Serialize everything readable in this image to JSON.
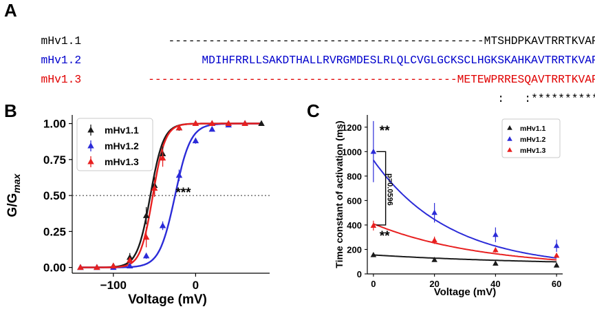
{
  "panel_labels": {
    "a": "A",
    "b": "B",
    "c": "C"
  },
  "alignment": {
    "rows": [
      {
        "name": "mHv1.1",
        "sequence": "-----------------------------------------------MTSHDPKAVTRRTKVAPT",
        "color": "#000000"
      },
      {
        "name": "mHv1.2",
        "sequence": "MDIHFRRLLSAKDTHALLRVRGMDESLRLQLCVGLGCKSCLHGKSKAHKAVTRRTKVAPT",
        "color": "#0000cc"
      },
      {
        "name": "mHv1.3",
        "sequence": "----------------------------------------------METEWPRRESQAVTRRTKVAPT",
        "color": "#e00000"
      }
    ],
    "consensus": ":   :***********"
  },
  "chart_data": [
    {
      "type": "line",
      "panel": "B",
      "xlabel": "Voltage (mV)",
      "ylabel_main": "G/G",
      "ylabel_sub": "max",
      "xlim": [
        -150,
        90
      ],
      "ylim": [
        -0.04,
        1.06
      ],
      "xticks": [
        -100,
        0
      ],
      "xtick_labels": [
        "−100",
        "0"
      ],
      "yticks": [
        0,
        0.25,
        0.5,
        0.75,
        1.0
      ],
      "ytick_labels": [
        "0.00",
        "0.25",
        "0.50",
        "0.75",
        "1.00"
      ],
      "reference_line": 0.5,
      "annotation": "***",
      "annotation_x": -15,
      "annotation_y": 0.5,
      "legend_position": "top-left",
      "series": [
        {
          "name": "mHv1.1",
          "color": "#1a1a1a",
          "vhalf": -55,
          "slope": 8,
          "x": [
            -140,
            -120,
            -100,
            -80,
            -60,
            -50,
            -40,
            -20,
            0,
            20,
            40,
            60,
            80
          ],
          "y": [
            0,
            0,
            0.01,
            0.07,
            0.36,
            0.57,
            0.79,
            0.97,
            1.0,
            1.0,
            1.0,
            1.0,
            1.0
          ],
          "err": [
            0,
            0,
            0.01,
            0.03,
            0.06,
            0.06,
            0.05,
            0.02,
            0,
            0,
            0,
            0,
            0
          ]
        },
        {
          "name": "mHv1.2",
          "color": "#2b2bd8",
          "vhalf": -25,
          "slope": 9.5,
          "x": [
            -140,
            -120,
            -100,
            -80,
            -60,
            -40,
            -20,
            0,
            20,
            40,
            60
          ],
          "y": [
            0,
            0,
            0,
            0.01,
            0.08,
            0.29,
            0.64,
            0.88,
            0.96,
            0.99,
            1.0
          ],
          "err": [
            0,
            0,
            0,
            0.01,
            0.02,
            0.03,
            0.04,
            0.02,
            0.01,
            0,
            0
          ]
        },
        {
          "name": "mHv1.3",
          "color": "#e82020",
          "vhalf": -52,
          "slope": 7.5,
          "x": [
            -140,
            -120,
            -100,
            -80,
            -60,
            -50,
            -40,
            -20,
            0,
            20,
            40,
            60
          ],
          "y": [
            0,
            0,
            0.01,
            0.05,
            0.21,
            0.55,
            0.76,
            0.97,
            1.0,
            1.0,
            1.0,
            1.0
          ],
          "err": [
            0,
            0,
            0.01,
            0.02,
            0.07,
            0.06,
            0.06,
            0.01,
            0,
            0,
            0,
            0
          ]
        }
      ]
    },
    {
      "type": "line",
      "panel": "C",
      "xlabel": "Voltage (mV)",
      "ylabel": "Time constant of activation (ms)",
      "xlim": [
        -2,
        62
      ],
      "ylim": [
        0,
        1300
      ],
      "xticks": [
        0,
        20,
        40,
        60
      ],
      "yticks": [
        0,
        200,
        400,
        600,
        800,
        1000,
        1200
      ],
      "legend_position": "top-right",
      "annotations": [
        {
          "text": "**",
          "x": 2,
          "y": 1170
        },
        {
          "text": "**",
          "x": 2,
          "y": 310
        },
        {
          "text": "p=0.0596",
          "x": 4,
          "y": 690,
          "rotated": true
        }
      ],
      "series": [
        {
          "name": "mHv1.1",
          "color": "#1a1a1a",
          "fit_a": 155,
          "fit_b": 70,
          "fit_tau": 55,
          "x": [
            0,
            20,
            40,
            60
          ],
          "y": [
            155,
            115,
            85,
            70
          ],
          "err": [
            10,
            10,
            10,
            8
          ]
        },
        {
          "name": "mHv1.2",
          "color": "#2b2bd8",
          "fit_a": 930,
          "fit_b": 50,
          "fit_tau": 25,
          "x": [
            0,
            20,
            40,
            60
          ],
          "y": [
            1000,
            500,
            320,
            230
          ],
          "err": [
            250,
            80,
            60,
            50
          ]
        },
        {
          "name": "mHv1.3",
          "color": "#e82020",
          "fit_a": 410,
          "fit_b": 50,
          "fit_tau": 35,
          "x": [
            0,
            20,
            40,
            60
          ],
          "y": [
            395,
            275,
            195,
            150
          ],
          "err": [
            40,
            30,
            20,
            15
          ]
        }
      ]
    }
  ]
}
